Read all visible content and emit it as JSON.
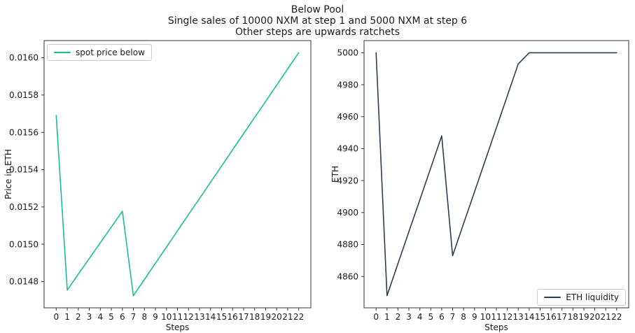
{
  "title": {
    "line1": "Below Pool",
    "line2": "Single sales of 10000 NXM at step 1 and 5000 NXM at step 6",
    "line3": "Other steps are upwards ratchets"
  },
  "colors": {
    "spot_price": "#1abc9c",
    "eth_liquidity": "#2c3e50",
    "spine": "#333333",
    "text": "#1a1a1a",
    "legend_border": "#cccccc"
  },
  "chart_data": [
    {
      "type": "line",
      "name": "spot-price-below",
      "xlabel": "Steps",
      "ylabel": "Price in ETH",
      "legend": {
        "label": "spot price below",
        "position": "upper left"
      },
      "color": "#1abc9c",
      "grid": false,
      "x": [
        0,
        1,
        2,
        3,
        4,
        5,
        6,
        7,
        8,
        9,
        10,
        11,
        12,
        13,
        14,
        15,
        16,
        17,
        18,
        19,
        20,
        21,
        22
      ],
      "y": [
        0.01569,
        0.014754,
        0.014839,
        0.014923,
        0.015008,
        0.015092,
        0.015177,
        0.014724,
        0.014811,
        0.014898,
        0.014985,
        0.015072,
        0.015159,
        0.015245,
        0.015332,
        0.015419,
        0.015506,
        0.015593,
        0.01568,
        0.015766,
        0.015853,
        0.01594,
        0.016027
      ],
      "xlim": [
        -1.1,
        23.1
      ],
      "ylim": [
        0.014659,
        0.016092
      ],
      "xticks": [
        0,
        1,
        2,
        3,
        4,
        5,
        6,
        7,
        8,
        9,
        10,
        11,
        12,
        13,
        14,
        15,
        16,
        17,
        18,
        19,
        20,
        21,
        22
      ],
      "yticks": [
        0.0148,
        0.015,
        0.0152,
        0.0154,
        0.0156,
        0.0158,
        0.016
      ],
      "ytick_labels": [
        "0.0148",
        "0.0150",
        "0.0152",
        "0.0154",
        "0.0156",
        "0.0158",
        "0.0160"
      ]
    },
    {
      "type": "line",
      "name": "eth-liquidity",
      "xlabel": "Steps",
      "ylabel": "ETH",
      "legend": {
        "label": "ETH liquidity",
        "position": "lower right"
      },
      "color": "#2c3e50",
      "grid": false,
      "x": [
        0,
        1,
        2,
        3,
        4,
        5,
        6,
        7,
        8,
        9,
        10,
        11,
        12,
        13,
        14,
        15,
        16,
        17,
        18,
        19,
        20,
        21,
        22
      ],
      "y": [
        5000,
        4848,
        4868,
        4888,
        4908,
        4928,
        4948,
        4873,
        4893,
        4913,
        4933,
        4953,
        4973,
        4993,
        5000,
        5000,
        5000,
        5000,
        5000,
        5000,
        5000,
        5000,
        5000
      ],
      "xlim": [
        -1.1,
        23.1
      ],
      "ylim": [
        4840.4,
        5007.6
      ],
      "xticks": [
        0,
        1,
        2,
        3,
        4,
        5,
        6,
        7,
        8,
        9,
        10,
        11,
        12,
        13,
        14,
        15,
        16,
        17,
        18,
        19,
        20,
        21,
        22
      ],
      "yticks": [
        4860,
        4880,
        4900,
        4920,
        4940,
        4960,
        4980,
        5000
      ],
      "ytick_labels": [
        "4860",
        "4880",
        "4900",
        "4920",
        "4940",
        "4960",
        "4980",
        "5000"
      ]
    }
  ]
}
